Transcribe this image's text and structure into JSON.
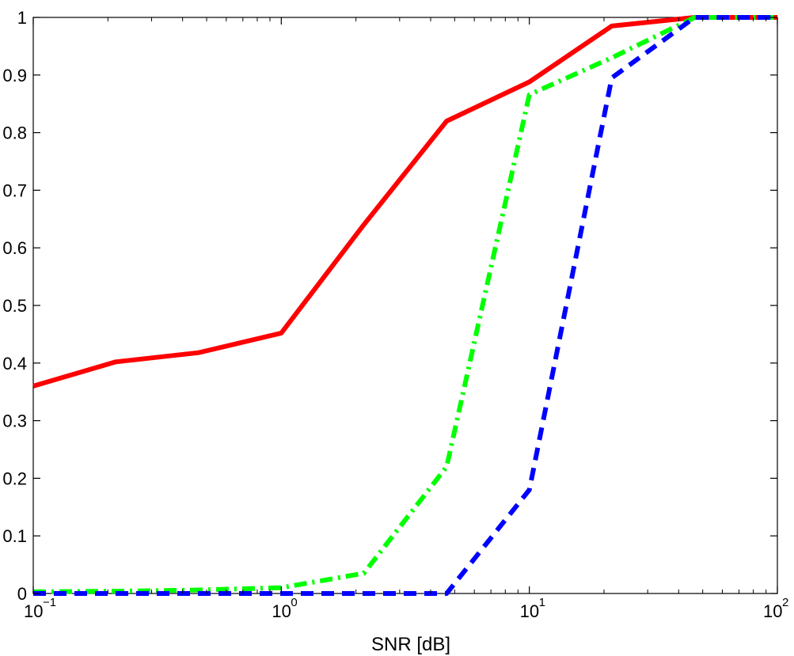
{
  "chart_data": {
    "type": "line",
    "xlabel": "SNR [dB]",
    "ylabel": "",
    "title": "",
    "x_scale": "log",
    "xlim": [
      0.1,
      100
    ],
    "ylim": [
      0,
      1
    ],
    "x_ticks": [
      {
        "value": 0.1,
        "base": "10",
        "exp": "−1"
      },
      {
        "value": 1,
        "base": "10",
        "exp": "0"
      },
      {
        "value": 10,
        "base": "10",
        "exp": "1"
      },
      {
        "value": 100,
        "base": "10",
        "exp": "2"
      }
    ],
    "y_ticks": [
      {
        "value": 0,
        "label": "0"
      },
      {
        "value": 0.1,
        "label": "0.1"
      },
      {
        "value": 0.2,
        "label": "0.2"
      },
      {
        "value": 0.3,
        "label": "0.3"
      },
      {
        "value": 0.4,
        "label": "0.4"
      },
      {
        "value": 0.5,
        "label": "0.5"
      },
      {
        "value": 0.6,
        "label": "0.6"
      },
      {
        "value": 0.7,
        "label": "0.7"
      },
      {
        "value": 0.8,
        "label": "0.8"
      },
      {
        "value": 0.9,
        "label": "0.9"
      },
      {
        "value": 1,
        "label": "1"
      }
    ],
    "grid": false,
    "legend": "none",
    "series": [
      {
        "color": "#ff0000",
        "line_style": "solid",
        "x": [
          0.1,
          0.215,
          0.464,
          1,
          2.15,
          4.64,
          10,
          21.5,
          46.4,
          100
        ],
        "y": [
          0.36,
          0.402,
          0.418,
          0.452,
          0.64,
          0.82,
          0.888,
          0.985,
          1.0,
          1.0
        ]
      },
      {
        "color": "#00ff00",
        "line_style": "dashdot",
        "x": [
          0.1,
          0.215,
          0.464,
          1,
          2.15,
          4.64,
          10,
          21.5,
          46.4,
          100
        ],
        "y": [
          0.003,
          0.004,
          0.006,
          0.01,
          0.035,
          0.22,
          0.866,
          0.93,
          1.0,
          1.0
        ]
      },
      {
        "color": "#0000ff",
        "line_style": "dashed",
        "x": [
          0.1,
          0.215,
          0.464,
          1,
          2.15,
          4.64,
          10,
          21.5,
          46.4,
          100
        ],
        "y": [
          0.0,
          0.0,
          0.0,
          0.0,
          0.0,
          0.0,
          0.18,
          0.895,
          1.0,
          1.0
        ]
      }
    ]
  }
}
